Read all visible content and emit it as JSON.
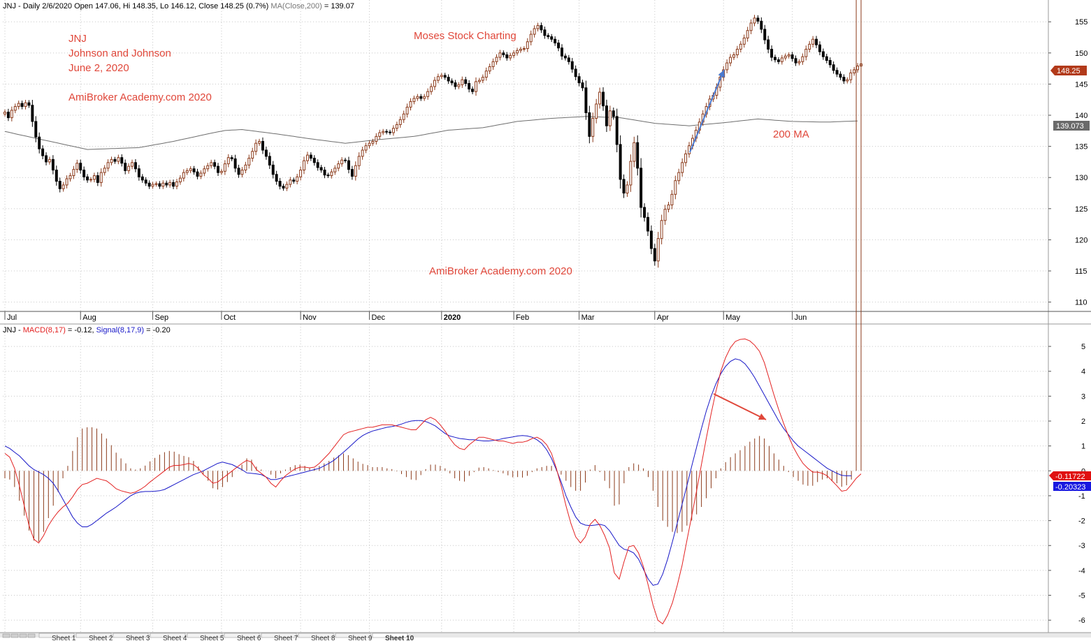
{
  "colors": {
    "background": "#ffffff",
    "grid": "#c8c8c8",
    "up_candle": "#8b3a1a",
    "down_candle": "#000000",
    "ma_line": "#6e6e6e",
    "macd_line": "#e32222",
    "signal_line": "#1818c8",
    "histogram": "#8b3a1a",
    "annotation_red": "#e0473a",
    "arrow_blue": "#4a7ad0",
    "arrow_red": "#e0473a",
    "price_tag": "#b23a1a",
    "ma_tag": "#6a6a6a",
    "macd_tag": "#e01010",
    "signal_tag": "#1818e0"
  },
  "header": {
    "price_title_main": "JNJ - Daily 2/6/2020 Open 147.06, Hi 148.35, Lo 146.12, Close 148.25 (0.7%)",
    "price_title_ma": "MA(Close,200)",
    "price_title_ma_value": " = 139.07",
    "macd_title_prefix": "JNJ - ",
    "macd_title_macd": "MACD(8,17)",
    "macd_title_macd_value": " = -0.12, ",
    "macd_title_signal": "Signal(8,17,9)",
    "macd_title_signal_value": " = -0.20"
  },
  "annotations": {
    "ticker": "JNJ",
    "company": "Johnson and Johnson",
    "date": "June 2, 2020",
    "watermark_top": "AmiBroker Academy.com 2020",
    "branding": "Moses Stock Charting",
    "watermark_bottom": "AmiBroker Academy.com  2020",
    "ma_label": "200 MA"
  },
  "tags": {
    "price": "148.25",
    "ma": "139.073",
    "macd": "-0.11722",
    "signal": "-0.20323"
  },
  "sheet_tabs": [
    "Sheet 1",
    "Sheet 2",
    "Sheet 3",
    "Sheet 4",
    "Sheet 5",
    "Sheet 6",
    "Sheet 7",
    "Sheet 8",
    "Sheet 9",
    "Sheet 10"
  ],
  "chart_data": [
    {
      "type": "candlestick",
      "title": "JNJ - Daily 2/6/2020 Open 147.06, Hi 148.35, Lo 146.12, Close 148.25 (0.7%) MA(Close,200) = 139.07",
      "x_ticks": [
        "Jul",
        "Aug",
        "Sep",
        "Oct",
        "Nov",
        "Dec",
        "2020",
        "Feb",
        "Mar",
        "Apr",
        "May",
        "Jun"
      ],
      "y_ticks": [
        110,
        115,
        120,
        125,
        130,
        135,
        140,
        145,
        150,
        155
      ],
      "ylim": [
        108.5,
        158.5
      ],
      "grid": true,
      "close_series": [
        140.5,
        139.6,
        140.8,
        141.4,
        141.9,
        141.4,
        142,
        141.6,
        139,
        136.5,
        134.6,
        133.5,
        132.5,
        132.9,
        131.2,
        129.4,
        128.2,
        128.8,
        129.8,
        130.3,
        131.3,
        132.3,
        131.2,
        130.1,
        129.6,
        129.7,
        130.3,
        129.2,
        130.8,
        131.5,
        132.4,
        132.9,
        132.6,
        133.2,
        132.3,
        131.1,
        131.8,
        132.4,
        131.4,
        130.1,
        129.6,
        129.1,
        128.6,
        128.9,
        129,
        128.6,
        129.1,
        128.8,
        129.2,
        128.6,
        129.3,
        129.9,
        130.8,
        131.1,
        131.4,
        130.9,
        130.2,
        130.7,
        131.4,
        131.9,
        132.4,
        131.8,
        130.8,
        131,
        132.2,
        133.2,
        133,
        131.5,
        130.5,
        131.2,
        132,
        133.1,
        134.2,
        135.5,
        135.8,
        134.4,
        133.4,
        132,
        130.5,
        129.4,
        128.6,
        128.3,
        128.9,
        129.6,
        129.4,
        130.1,
        131.2,
        132.7,
        133.6,
        133.1,
        132.4,
        131.6,
        131.2,
        130.4,
        130.3,
        130.9,
        131.5,
        132.2,
        132.8,
        132.7,
        131.3,
        130.2,
        131.9,
        133.4,
        134.4,
        135.1,
        135.5,
        135.8,
        136.6,
        137.2,
        137.4,
        137.3,
        137.2,
        137.9,
        138.5,
        139.3,
        140.2,
        141.3,
        142.2,
        142.7,
        143,
        142.7,
        143,
        143.8,
        144.6,
        145.6,
        146.2,
        146.4,
        146.1,
        145.5,
        145.2,
        144.6,
        144.9,
        145.7,
        145.1,
        144.2,
        143.8,
        145.4,
        145.6,
        146.1,
        147.1,
        147.8,
        148.6,
        149.3,
        150,
        149.7,
        149.2,
        149.6,
        150,
        150.4,
        150.6,
        150.7,
        151.8,
        153,
        153.9,
        154.4,
        153.7,
        152.8,
        152.6,
        152.2,
        151.6,
        150.8,
        149.5,
        149.2,
        148.6,
        147.4,
        146.2,
        145.2,
        144.4,
        140.4,
        136.6,
        139.5,
        141.8,
        143.7,
        141.5,
        138.3,
        140.7,
        139.8,
        135.3,
        129.7,
        127.5,
        128.8,
        132.6,
        135.6,
        131.5,
        125.2,
        123.6,
        121.4,
        118.6,
        116.6,
        120.2,
        123.1,
        124.9,
        125.6,
        127.3,
        129.5,
        130.8,
        132.4,
        133.8,
        135.1,
        136.3,
        137.6,
        138.9,
        140.2,
        141.4,
        142.6,
        143.2,
        144.5,
        146.1,
        147.3,
        148.4,
        149.3,
        149.7,
        150.6,
        151.4,
        152.4,
        153.6,
        154.8,
        155.6,
        155.1,
        153.8,
        152.1,
        150.6,
        149.3,
        148.9,
        148.6,
        149.2,
        149.5,
        149.7,
        149.1,
        148.4,
        148.6,
        149.4,
        150.6,
        151.4,
        152.2,
        151.3,
        150.2,
        149.4,
        148.8,
        148.1,
        147.2,
        146.6,
        146.1,
        145.5,
        145.7,
        146.8,
        147.3,
        147.9,
        148.25
      ],
      "ma200_series": [
        137.4,
        137.28,
        137.15,
        137.02,
        136.9,
        136.78,
        136.66,
        136.54,
        136.42,
        136.3,
        136.18,
        136.06,
        135.94,
        135.82,
        135.7,
        135.58,
        135.46,
        135.34,
        135.22,
        135.1,
        134.98,
        134.86,
        134.74,
        134.62,
        134.5,
        134.52,
        134.54,
        134.56,
        134.58,
        134.6,
        134.62,
        134.64,
        134.66,
        134.68,
        134.7,
        134.72,
        134.74,
        134.76,
        134.78,
        134.8,
        134.9,
        135.0,
        135.1,
        135.2,
        135.3,
        135.4,
        135.5,
        135.6,
        135.7,
        135.8,
        135.92,
        136.04,
        136.16,
        136.28,
        136.4,
        136.52,
        136.64,
        136.76,
        136.88,
        137.0,
        137.11,
        137.22,
        137.33,
        137.44,
        137.55,
        137.58,
        137.61,
        137.64,
        137.67,
        137.7,
        137.63,
        137.56,
        137.49,
        137.42,
        137.35,
        137.28,
        137.21,
        137.14,
        137.07,
        137.0,
        136.92,
        136.84,
        136.76,
        136.68,
        136.6,
        136.52,
        136.44,
        136.36,
        136.28,
        136.2,
        136.13,
        136.06,
        135.99,
        135.92,
        135.85,
        135.78,
        135.71,
        135.64,
        135.57,
        135.5,
        135.56,
        135.62,
        135.68,
        135.74,
        135.8,
        135.86,
        135.92,
        135.98,
        136.04,
        136.1,
        136.15,
        136.2,
        136.25,
        136.3,
        136.35,
        136.4,
        136.45,
        136.5,
        136.55,
        136.6,
        136.7,
        136.8,
        136.9,
        137.0,
        137.1,
        137.2,
        137.3,
        137.4,
        137.5,
        137.6,
        137.64,
        137.68,
        137.72,
        137.76,
        137.8,
        137.84,
        137.88,
        137.92,
        137.96,
        138.0,
        138.1,
        138.2,
        138.3,
        138.4,
        138.5,
        138.6,
        138.7,
        138.8,
        138.9,
        139.0,
        139.05,
        139.1,
        139.15,
        139.2,
        139.25,
        139.3,
        139.35,
        139.4,
        139.45,
        139.5,
        139.53,
        139.56,
        139.59,
        139.62,
        139.65,
        139.68,
        139.71,
        139.74,
        139.77,
        139.8,
        139.78,
        139.76,
        139.74,
        139.72,
        139.7,
        139.68,
        139.66,
        139.64,
        139.62,
        139.6,
        139.51,
        139.42,
        139.33,
        139.24,
        139.15,
        139.06,
        138.97,
        138.88,
        138.79,
        138.7,
        138.66,
        138.62,
        138.58,
        138.54,
        138.5,
        138.46,
        138.42,
        138.38,
        138.34,
        138.3,
        138.35,
        138.4,
        138.45,
        138.5,
        138.55,
        138.6,
        138.65,
        138.7,
        138.75,
        138.8,
        138.86,
        138.92,
        138.98,
        139.04,
        139.1,
        139.16,
        139.22,
        139.28,
        139.34,
        139.4,
        139.36,
        139.32,
        139.28,
        139.24,
        139.2,
        139.16,
        139.12,
        139.08,
        139.04,
        139.0,
        138.99,
        138.98,
        138.97,
        138.96,
        138.95,
        138.94,
        138.93,
        138.92,
        138.91,
        138.9,
        138.92,
        138.94,
        138.96,
        138.98,
        139.0,
        139.02,
        139.04,
        139.06,
        139.07
      ]
    },
    {
      "type": "line",
      "title": "JNJ - MACD(8,17) = -0.12, Signal(8,17,9) = -0.20",
      "y_ticks": [
        -6,
        -5,
        -4,
        -3,
        -2,
        -1,
        0,
        1,
        2,
        3,
        4,
        5
      ],
      "ylim": [
        -6.5,
        5.9
      ],
      "grid": true,
      "series": [
        {
          "name": "MACD(8,17)",
          "values": [
            0.7,
            0.55,
            0.1,
            -0.6,
            -1.4,
            -2.2,
            -2.75,
            -2.9,
            -2.6,
            -2.2,
            -1.9,
            -1.65,
            -1.45,
            -1.3,
            -1.05,
            -0.75,
            -0.55,
            -0.5,
            -0.4,
            -0.3,
            -0.35,
            -0.4,
            -0.55,
            -0.72,
            -0.8,
            -0.85,
            -0.9,
            -0.85,
            -0.75,
            -0.62,
            -0.45,
            -0.3,
            -0.15,
            0,
            0.15,
            0.22,
            0.22,
            0.25,
            0.3,
            0.25,
            0.1,
            -0.15,
            -0.3,
            -0.5,
            -0.45,
            -0.3,
            -0.15,
            0,
            0.15,
            0.3,
            0.42,
            0.35,
            0.05,
            -0.1,
            -0.25,
            -0.5,
            -0.65,
            -0.4,
            -0.2,
            -0.05,
            0.08,
            0.15,
            0.15,
            0.12,
            0.15,
            0.3,
            0.5,
            0.7,
            0.95,
            1.2,
            1.45,
            1.55,
            1.6,
            1.65,
            1.7,
            1.75,
            1.75,
            1.8,
            1.85,
            1.85,
            1.85,
            1.8,
            1.75,
            1.7,
            1.65,
            1.65,
            1.85,
            2.05,
            2.15,
            2.05,
            1.85,
            1.6,
            1.3,
            1.05,
            0.9,
            0.85,
            1.05,
            1.2,
            1.35,
            1.35,
            1.3,
            1.25,
            1.2,
            1.2,
            1.15,
            1.1,
            1.15,
            1.15,
            1.2,
            1.3,
            1.35,
            1.25,
            1.05,
            0.7,
            0.1,
            -0.6,
            -1.4,
            -2.1,
            -2.65,
            -2.9,
            -2.65,
            -2.15,
            -1.95,
            -2.2,
            -2.6,
            -3.1,
            -4.1,
            -4.35,
            -3.65,
            -3.05,
            -3.0,
            -3.3,
            -3.85,
            -4.6,
            -5.4,
            -6.0,
            -6.15,
            -5.8,
            -5.3,
            -4.6,
            -3.8,
            -2.8,
            -1.8,
            -0.8,
            0.25,
            1.3,
            2.3,
            3.2,
            4.0,
            4.55,
            4.95,
            5.2,
            5.28,
            5.3,
            5.22,
            5.05,
            4.8,
            4.35,
            3.7,
            3.05,
            2.45,
            1.9,
            1.4,
            0.95,
            0.6,
            0.3,
            0.1,
            -0.05,
            -0.05,
            -0.1,
            -0.2,
            -0.4,
            -0.6,
            -0.82,
            -0.78,
            -0.55,
            -0.3,
            -0.12
          ]
        },
        {
          "name": "Signal(8,17,9)",
          "values": [
            1.0,
            0.9,
            0.75,
            0.6,
            0.4,
            0.2,
            0.05,
            -0.05,
            -0.15,
            -0.3,
            -0.5,
            -0.8,
            -1.15,
            -1.5,
            -1.85,
            -2.1,
            -2.25,
            -2.25,
            -2.15,
            -2.0,
            -1.85,
            -1.7,
            -1.58,
            -1.45,
            -1.3,
            -1.15,
            -1.0,
            -0.9,
            -0.85,
            -0.83,
            -0.83,
            -0.82,
            -0.8,
            -0.75,
            -0.65,
            -0.55,
            -0.45,
            -0.35,
            -0.25,
            -0.15,
            -0.08,
            0,
            0.1,
            0.2,
            0.3,
            0.35,
            0.3,
            0.25,
            0.15,
            0.05,
            -0.08,
            -0.1,
            -0.12,
            -0.15,
            -0.25,
            -0.35,
            -0.35,
            -0.3,
            -0.25,
            -0.2,
            -0.15,
            -0.1,
            -0.05,
            0,
            0.05,
            0.1,
            0.2,
            0.3,
            0.42,
            0.58,
            0.75,
            0.92,
            1.1,
            1.28,
            1.42,
            1.52,
            1.6,
            1.65,
            1.7,
            1.75,
            1.78,
            1.82,
            1.88,
            1.95,
            2.0,
            2.02,
            2.02,
            1.98,
            1.9,
            1.8,
            1.65,
            1.5,
            1.4,
            1.35,
            1.3,
            1.28,
            1.25,
            1.25,
            1.22,
            1.2,
            1.2,
            1.22,
            1.25,
            1.3,
            1.33,
            1.36,
            1.4,
            1.42,
            1.4,
            1.35,
            1.25,
            1.1,
            0.85,
            0.5,
            0.05,
            -0.45,
            -1.0,
            -1.45,
            -1.85,
            -2.1,
            -2.18,
            -2.2,
            -2.18,
            -2.15,
            -2.2,
            -2.4,
            -2.7,
            -3.0,
            -3.15,
            -3.2,
            -3.3,
            -3.55,
            -3.95,
            -4.35,
            -4.6,
            -4.55,
            -4.15,
            -3.55,
            -2.85,
            -2.1,
            -1.35,
            -0.6,
            0.2,
            0.95,
            1.7,
            2.4,
            3.0,
            3.5,
            3.9,
            4.2,
            4.4,
            4.5,
            4.45,
            4.3,
            4.05,
            3.75,
            3.4,
            3.05,
            2.7,
            2.35,
            2.0,
            1.7,
            1.45,
            1.2,
            1.0,
            0.85,
            0.7,
            0.55,
            0.4,
            0.25,
            0.1,
            0.0,
            -0.1,
            -0.18,
            -0.2,
            -0.2
          ]
        }
      ]
    }
  ]
}
